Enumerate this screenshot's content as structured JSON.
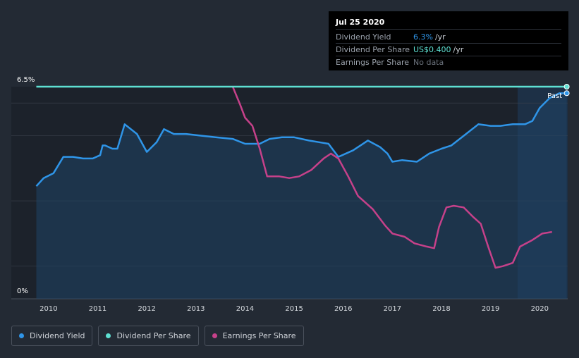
{
  "colors": {
    "background": "#232a34",
    "plot_background": "#1c222b",
    "dividend_yield": "#2f95e8",
    "dividend_yield_fill": "#1f4466",
    "dividend_per_share": "#5ee0d2",
    "earnings_per_share": "#c6418a",
    "grid": "#3a414c",
    "axis_text": "#ffffff",
    "tooltip_yield": "#2f95e8",
    "tooltip_dps": "#5ee0d2"
  },
  "tooltip": {
    "date": "Jul 25 2020",
    "rows": [
      {
        "label": "Dividend Yield",
        "value": "6.3%",
        "unit": "/yr"
      },
      {
        "label": "Dividend Per Share",
        "value": "US$0.400",
        "unit": "/yr"
      },
      {
        "label": "Earnings Per Share",
        "value": "No data",
        "unit": ""
      }
    ]
  },
  "legend": [
    {
      "label": "Dividend Yield",
      "icon": "dividend-yield-dot"
    },
    {
      "label": "Dividend Per Share",
      "icon": "dividend-per-share-dot"
    },
    {
      "label": "Earnings Per Share",
      "icon": "earnings-per-share-dot"
    }
  ],
  "chart_data": {
    "type": "line",
    "title": "",
    "xlabel": "",
    "ylabel": "",
    "y_tick_labels": [
      "6.5%",
      "0%"
    ],
    "ylim": [
      0,
      6.5
    ],
    "xlim": [
      2009.7,
      2020.57
    ],
    "x_tick_labels": [
      "2010",
      "2011",
      "2012",
      "2013",
      "2014",
      "2015",
      "2016",
      "2017",
      "2018",
      "2019",
      "2020"
    ],
    "x_ticks": [
      2010,
      2011,
      2012,
      2013,
      2014,
      2015,
      2016,
      2017,
      2018,
      2019,
      2020
    ],
    "forecast_region_start": 2019.55,
    "annotation": "Past",
    "series": [
      {
        "name": "Dividend Yield",
        "unit": "%",
        "x": [
          2009.75,
          2009.9,
          2010.1,
          2010.3,
          2010.5,
          2010.7,
          2010.9,
          2011.05,
          2011.1,
          2011.15,
          2011.3,
          2011.4,
          2011.55,
          2011.8,
          2012.0,
          2012.2,
          2012.35,
          2012.55,
          2012.8,
          2013.1,
          2013.4,
          2013.75,
          2014.0,
          2014.3,
          2014.5,
          2014.75,
          2015.0,
          2015.3,
          2015.5,
          2015.7,
          2015.9,
          2016.2,
          2016.5,
          2016.75,
          2016.9,
          2017.0,
          2017.2,
          2017.5,
          2017.75,
          2018.0,
          2018.2,
          2018.5,
          2018.75,
          2019.0,
          2019.2,
          2019.45,
          2019.7,
          2019.85,
          2020.0,
          2020.2,
          2020.4,
          2020.55
        ],
        "y": [
          3.45,
          3.7,
          3.85,
          4.35,
          4.35,
          4.3,
          4.3,
          4.4,
          4.7,
          4.7,
          4.6,
          4.6,
          5.35,
          5.05,
          4.5,
          4.8,
          5.2,
          5.05,
          5.05,
          5.0,
          4.95,
          4.9,
          4.75,
          4.75,
          4.9,
          4.95,
          4.95,
          4.85,
          4.8,
          4.75,
          4.35,
          4.55,
          4.85,
          4.65,
          4.45,
          4.2,
          4.25,
          4.2,
          4.45,
          4.6,
          4.7,
          5.05,
          5.35,
          5.3,
          5.3,
          5.35,
          5.35,
          5.45,
          5.85,
          6.15,
          6.3,
          6.3
        ]
      },
      {
        "name": "Dividend Per Share",
        "unit": "US$",
        "x": [
          2009.75,
          2020.55
        ],
        "y": [
          0.4,
          0.4
        ]
      },
      {
        "name": "Earnings Per Share",
        "unit": "US$",
        "x": [
          2013.75,
          2013.9,
          2014.0,
          2014.15,
          2014.3,
          2014.45,
          2014.7,
          2014.9,
          2015.1,
          2015.35,
          2015.6,
          2015.75,
          2015.9,
          2016.1,
          2016.3,
          2016.6,
          2016.85,
          2017.0,
          2017.25,
          2017.45,
          2017.7,
          2017.85,
          2017.95,
          2018.1,
          2018.25,
          2018.45,
          2018.65,
          2018.8,
          2018.95,
          2019.1,
          2019.25,
          2019.45,
          2019.6,
          2019.85,
          2020.05,
          2020.25
        ],
        "y": [
          6.5,
          5.95,
          5.55,
          5.3,
          4.6,
          3.75,
          3.75,
          3.7,
          3.75,
          3.95,
          4.3,
          4.45,
          4.3,
          3.75,
          3.15,
          2.75,
          2.25,
          2.0,
          1.9,
          1.7,
          1.6,
          1.55,
          2.2,
          2.8,
          2.85,
          2.8,
          2.5,
          2.3,
          1.6,
          0.95,
          1.0,
          1.1,
          1.6,
          1.8,
          2.0,
          2.05
        ]
      }
    ]
  }
}
